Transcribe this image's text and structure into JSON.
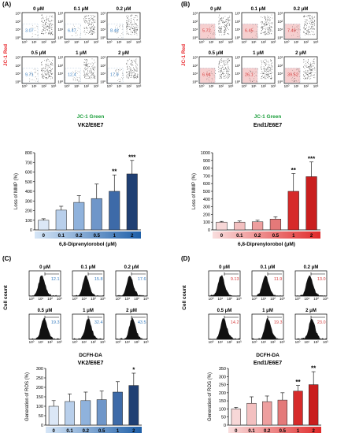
{
  "figure": {
    "background": "#ffffff",
    "accent_colors": {
      "jc1_red": "#e8262b",
      "jc1_green": "#1a9e3a",
      "blue_value": "#3a7fc1",
      "red_value": "#d63d3d"
    }
  },
  "panels": [
    {
      "id": "A",
      "label": "(A)",
      "ylabel": "JC-1 Red",
      "xlabel": "JC-1 Green",
      "flow_type": "scatter",
      "theme": "blue",
      "axis_ticks": [
        "10⁰",
        "10¹",
        "10²",
        "10³"
      ],
      "flow_plots": [
        {
          "conc": "0 μM",
          "value": "3.07"
        },
        {
          "conc": "0.1 μM",
          "value": "6.47"
        },
        {
          "conc": "0.2 μM",
          "value": "8.48"
        },
        {
          "conc": "0.5 μM",
          "value": "9.71"
        },
        {
          "conc": "1 μM",
          "value": "12.4"
        },
        {
          "conc": "2 μM",
          "value": "17.9"
        }
      ]
    },
    {
      "id": "B",
      "label": "(B)",
      "ylabel": "JC-1 Red",
      "xlabel": "JC-1 Green",
      "flow_type": "scatter",
      "theme": "red",
      "axis_ticks": [
        "10⁰",
        "10¹",
        "10²",
        "10³"
      ],
      "flow_plots": [
        {
          "conc": "0 μM",
          "value": "5.72"
        },
        {
          "conc": "0.1 μM",
          "value": "6.45"
        },
        {
          "conc": "0.2 μM",
          "value": "7.49"
        },
        {
          "conc": "0.5 μM",
          "value": "6.94"
        },
        {
          "conc": "1 μM",
          "value": "26.1"
        },
        {
          "conc": "2 μM",
          "value": "39.52"
        }
      ]
    },
    {
      "id": "C",
      "label": "(C)",
      "ylabel": "Cell count",
      "xlabel": "DCFH-DA",
      "flow_type": "histogram",
      "theme": "blue",
      "axis_ticks": [
        "10⁰",
        "10¹",
        "10²",
        "10³"
      ],
      "flow_plots": [
        {
          "conc": "0 μM",
          "value": "12.1"
        },
        {
          "conc": "0.1 μM",
          "value": "15.8"
        },
        {
          "conc": "0.2 μM",
          "value": "17.6"
        },
        {
          "conc": "0.5 μM",
          "value": "19.3"
        },
        {
          "conc": "1 μM",
          "value": "32.4"
        },
        {
          "conc": "2 μM",
          "value": "43.5"
        }
      ]
    },
    {
      "id": "D",
      "label": "(D)",
      "ylabel": "Cell count",
      "xlabel": "DCFH-DA",
      "flow_type": "histogram",
      "theme": "red",
      "axis_ticks": [
        "10⁰",
        "10¹",
        "10²",
        "10³"
      ],
      "flow_plots": [
        {
          "conc": "0 μM",
          "value": "9.13"
        },
        {
          "conc": "0.1 μM",
          "value": "11.9"
        },
        {
          "conc": "0.2 μM",
          "value": "13.0"
        },
        {
          "conc": "0.5 μM",
          "value": "14.2"
        },
        {
          "conc": "1 μM",
          "value": "19.3"
        },
        {
          "conc": "2 μM",
          "value": "23.0"
        }
      ]
    }
  ],
  "chart_data": [
    {
      "id": "A-bar",
      "type": "bar",
      "title": "VK2/E6E7",
      "xlabel": "6,8-Diprenylorobol (μM)",
      "ylabel": "Loss of MMP (%)",
      "categories": [
        "0",
        "0.1",
        "0.2",
        "0.5",
        "1",
        "2"
      ],
      "values": [
        100,
        205,
        285,
        325,
        400,
        580
      ],
      "errors": [
        15,
        40,
        70,
        150,
        170,
        140
      ],
      "significance": [
        "",
        "",
        "",
        "",
        "**",
        "***"
      ],
      "ylim": [
        0,
        800
      ],
      "yticks": [
        0,
        100,
        200,
        300,
        400,
        500,
        600,
        700,
        800
      ],
      "colors": [
        "#dbe7f6",
        "#b8cfeb",
        "#8fb2dc",
        "#6f96c9",
        "#3d6aa8",
        "#1f3f73"
      ],
      "gradient": [
        "#d6e6f7",
        "#1f5fa8"
      ]
    },
    {
      "id": "B-bar",
      "type": "bar",
      "title": "End1/E6E7",
      "xlabel": "6,8-Diprenylorobol (μM)",
      "ylabel": "Loss of MMP (%)",
      "categories": [
        "0",
        "0.1",
        "0.2",
        "0.5",
        "1",
        "2"
      ],
      "values": [
        100,
        100,
        105,
        140,
        500,
        690
      ],
      "errors": [
        10,
        15,
        20,
        30,
        230,
        190
      ],
      "significance": [
        "",
        "",
        "",
        "",
        "**",
        "***"
      ],
      "ylim": [
        0,
        1000
      ],
      "yticks": [
        0,
        100,
        200,
        300,
        400,
        500,
        600,
        700,
        800,
        900,
        1000
      ],
      "colors": [
        "#f7d7d7",
        "#f3c0c0",
        "#ee9f9f",
        "#e47979",
        "#d62a2a",
        "#c91e1e"
      ],
      "gradient": [
        "#f9dede",
        "#e02a2a"
      ]
    },
    {
      "id": "C-bar",
      "type": "bar",
      "title": "VK2/E6E7",
      "xlabel": "6,8-Diprenylorobol (μM)",
      "ylabel": "Generation of ROS (%)",
      "categories": [
        "0",
        "0.1",
        "0.2",
        "0.5",
        "1",
        "2"
      ],
      "values": [
        100,
        125,
        130,
        135,
        175,
        210
      ],
      "errors": [
        30,
        40,
        45,
        45,
        55,
        65
      ],
      "significance": [
        "",
        "",
        "",
        "",
        "",
        "*"
      ],
      "ylim": [
        0,
        300
      ],
      "yticks": [
        0,
        50,
        100,
        150,
        200,
        250,
        300
      ],
      "colors": [
        "#dbe7f6",
        "#b8cfeb",
        "#8fb2dc",
        "#6f96c9",
        "#3d6aa8",
        "#1f3f73"
      ],
      "gradient": [
        "#d6e6f7",
        "#1f5fa8"
      ]
    },
    {
      "id": "D-bar",
      "type": "bar",
      "title": "End1/E6E7",
      "xlabel": "6,8-Diprenylorobol (μM)",
      "ylabel": "Generation of ROS (%)",
      "categories": [
        "0",
        "0.1",
        "0.2",
        "0.5",
        "1",
        "2"
      ],
      "values": [
        100,
        135,
        145,
        155,
        210,
        250
      ],
      "errors": [
        10,
        40,
        35,
        45,
        35,
        80
      ],
      "significance": [
        "",
        "",
        "",
        "",
        "**",
        "**"
      ],
      "ylim": [
        0,
        350
      ],
      "yticks": [
        0,
        50,
        100,
        150,
        200,
        250,
        300,
        350
      ],
      "colors": [
        "#f7d7d7",
        "#f3c0c0",
        "#ee9f9f",
        "#e47979",
        "#d62a2a",
        "#c91e1e"
      ],
      "gradient": [
        "#f9dede",
        "#e02a2a"
      ]
    }
  ]
}
